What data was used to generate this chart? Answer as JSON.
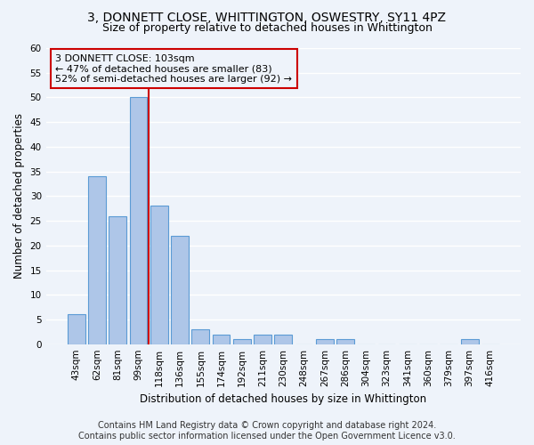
{
  "title1": "3, DONNETT CLOSE, WHITTINGTON, OSWESTRY, SY11 4PZ",
  "title2": "Size of property relative to detached houses in Whittington",
  "xlabel": "Distribution of detached houses by size in Whittington",
  "ylabel": "Number of detached properties",
  "categories": [
    "43sqm",
    "62sqm",
    "81sqm",
    "99sqm",
    "118sqm",
    "136sqm",
    "155sqm",
    "174sqm",
    "192sqm",
    "211sqm",
    "230sqm",
    "248sqm",
    "267sqm",
    "286sqm",
    "304sqm",
    "323sqm",
    "341sqm",
    "360sqm",
    "379sqm",
    "397sqm",
    "416sqm"
  ],
  "values": [
    6,
    34,
    26,
    50,
    28,
    22,
    3,
    2,
    1,
    2,
    2,
    0,
    1,
    1,
    0,
    0,
    0,
    0,
    0,
    1,
    0
  ],
  "bar_color": "#aec6e8",
  "bar_edge_color": "#5b9bd5",
  "red_line_index": 4,
  "annotation_text_line1": "3 DONNETT CLOSE: 103sqm",
  "annotation_text_line2": "← 47% of detached houses are smaller (83)",
  "annotation_text_line3": "52% of semi-detached houses are larger (92) →",
  "ylim": [
    0,
    60
  ],
  "yticks": [
    0,
    5,
    10,
    15,
    20,
    25,
    30,
    35,
    40,
    45,
    50,
    55,
    60
  ],
  "footer1": "Contains HM Land Registry data © Crown copyright and database right 2024.",
  "footer2": "Contains public sector information licensed under the Open Government Licence v3.0.",
  "bg_color": "#eef3fa",
  "grid_color": "#ffffff",
  "title1_fontsize": 10,
  "title2_fontsize": 9,
  "xlabel_fontsize": 8.5,
  "ylabel_fontsize": 8.5,
  "tick_fontsize": 7.5,
  "footer_fontsize": 7,
  "annotation_fontsize": 8,
  "red_line_color": "#cc0000",
  "annotation_box_edge_color": "#cc0000"
}
